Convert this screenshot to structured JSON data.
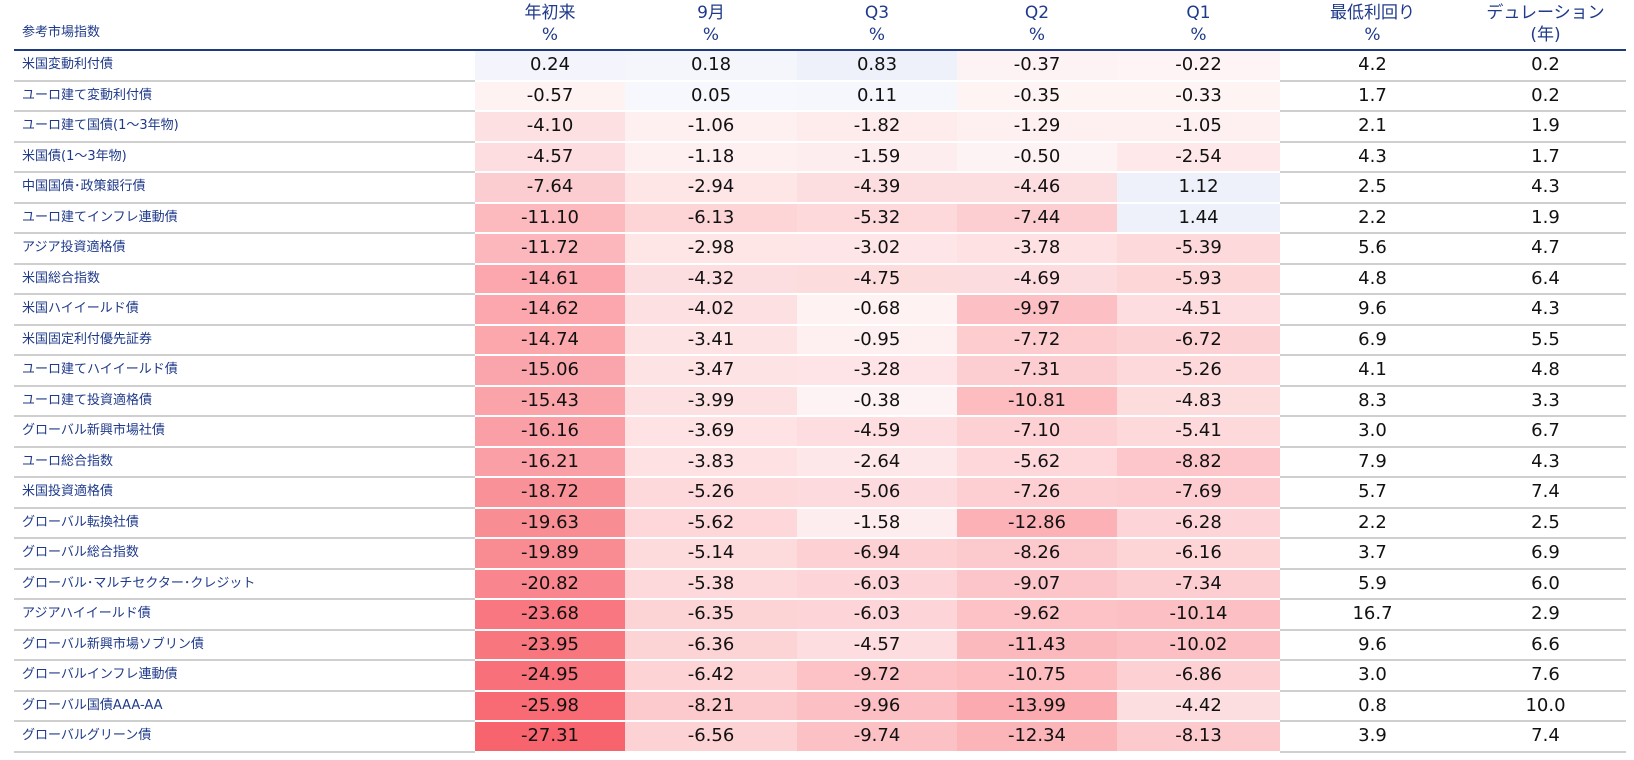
{
  "chart_data": {
    "type": "table",
    "columns": [
      {
        "key": "ytd",
        "label_top": "年初来",
        "label_bottom": "%"
      },
      {
        "key": "sep",
        "label_top": "9月",
        "label_bottom": "%"
      },
      {
        "key": "q3",
        "label_top": "Q3",
        "label_bottom": "%"
      },
      {
        "key": "q2",
        "label_top": "Q2",
        "label_bottom": "%"
      },
      {
        "key": "q1",
        "label_top": "Q1",
        "label_bottom": "%"
      },
      {
        "key": "ytw",
        "label_top": "最低利回り",
        "label_bottom": "%"
      },
      {
        "key": "dur",
        "label_top": "デュレーション",
        "label_bottom": "(年)"
      }
    ],
    "index_header": "参考市場指数",
    "rows": [
      {
        "name": "米国変動利付債",
        "values": [
          "0.24",
          "0.18",
          "0.83",
          "-0.37",
          "-0.22",
          "4.2",
          "0.2"
        ]
      },
      {
        "name": "ユーロ建て変動利付債",
        "values": [
          "-0.57",
          "0.05",
          "0.11",
          "-0.35",
          "-0.33",
          "1.7",
          "0.2"
        ]
      },
      {
        "name": "ユーロ建て国債(1～3年物)",
        "values": [
          "-4.10",
          "-1.06",
          "-1.82",
          "-1.29",
          "-1.05",
          "2.1",
          "1.9"
        ]
      },
      {
        "name": "米国債(1～3年物)",
        "values": [
          "-4.57",
          "-1.18",
          "-1.59",
          "-0.50",
          "-2.54",
          "4.3",
          "1.7"
        ]
      },
      {
        "name": "中国国債･政策銀行債",
        "values": [
          "-7.64",
          "-2.94",
          "-4.39",
          "-4.46",
          "1.12",
          "2.5",
          "4.3"
        ]
      },
      {
        "name": "ユーロ建てインフレ連動債",
        "values": [
          "-11.10",
          "-6.13",
          "-5.32",
          "-7.44",
          "1.44",
          "2.2",
          "1.9"
        ]
      },
      {
        "name": "アジア投資適格債",
        "values": [
          "-11.72",
          "-2.98",
          "-3.02",
          "-3.78",
          "-5.39",
          "5.6",
          "4.7"
        ]
      },
      {
        "name": "米国総合指数",
        "values": [
          "-14.61",
          "-4.32",
          "-4.75",
          "-4.69",
          "-5.93",
          "4.8",
          "6.4"
        ]
      },
      {
        "name": "米国ハイイールド債",
        "values": [
          "-14.62",
          "-4.02",
          "-0.68",
          "-9.97",
          "-4.51",
          "9.6",
          "4.3"
        ]
      },
      {
        "name": "米国固定利付優先証券",
        "values": [
          "-14.74",
          "-3.41",
          "-0.95",
          "-7.72",
          "-6.72",
          "6.9",
          "5.5"
        ]
      },
      {
        "name": "ユーロ建てハイイールド債",
        "values": [
          "-15.06",
          "-3.47",
          "-3.28",
          "-7.31",
          "-5.26",
          "4.1",
          "4.8"
        ]
      },
      {
        "name": "ユーロ建て投資適格債",
        "values": [
          "-15.43",
          "-3.99",
          "-0.38",
          "-10.81",
          "-4.83",
          "8.3",
          "3.3"
        ]
      },
      {
        "name": "グローバル新興市場社債",
        "values": [
          "-16.16",
          "-3.69",
          "-4.59",
          "-7.10",
          "-5.41",
          "3.0",
          "6.7"
        ]
      },
      {
        "name": "ユーロ総合指数",
        "values": [
          "-16.21",
          "-3.83",
          "-2.64",
          "-5.62",
          "-8.82",
          "7.9",
          "4.3"
        ]
      },
      {
        "name": "米国投資適格債",
        "values": [
          "-18.72",
          "-5.26",
          "-5.06",
          "-7.26",
          "-7.69",
          "5.7",
          "7.4"
        ]
      },
      {
        "name": "グローバル転換社債",
        "values": [
          "-19.63",
          "-5.62",
          "-1.58",
          "-12.86",
          "-6.28",
          "2.2",
          "2.5"
        ]
      },
      {
        "name": "グローバル総合指数",
        "values": [
          "-19.89",
          "-5.14",
          "-6.94",
          "-8.26",
          "-6.16",
          "3.7",
          "6.9"
        ]
      },
      {
        "name": "グローバル･マルチセクター･クレジット",
        "values": [
          "-20.82",
          "-5.38",
          "-6.03",
          "-9.07",
          "-7.34",
          "5.9",
          "6.0"
        ]
      },
      {
        "name": "アジアハイイールド債",
        "values": [
          "-23.68",
          "-6.35",
          "-6.03",
          "-9.62",
          "-10.14",
          "16.7",
          "2.9"
        ]
      },
      {
        "name": "グローバル新興市場ソブリン債",
        "values": [
          "-23.95",
          "-6.36",
          "-4.57",
          "-11.43",
          "-10.02",
          "9.6",
          "6.6"
        ]
      },
      {
        "name": "グローバルインフレ連動債",
        "values": [
          "-24.95",
          "-6.42",
          "-9.72",
          "-10.75",
          "-6.86",
          "3.0",
          "7.6"
        ]
      },
      {
        "name": "グローバル国債AAA-AA",
        "values": [
          "-25.98",
          "-8.21",
          "-9.96",
          "-13.99",
          "-4.42",
          "0.8",
          "10.0"
        ]
      },
      {
        "name": "グローバルグリーン債",
        "values": [
          "-27.31",
          "-6.56",
          "-9.74",
          "-12.34",
          "-8.13",
          "3.9",
          "7.4"
        ]
      }
    ],
    "heatmap_columns": 5,
    "heat_color_negative": "#f7606a",
    "heat_color_positive": "#eef0fa",
    "heat_max_abs": 28,
    "text_color": "#111111",
    "label_color": "#1f3a8a"
  }
}
